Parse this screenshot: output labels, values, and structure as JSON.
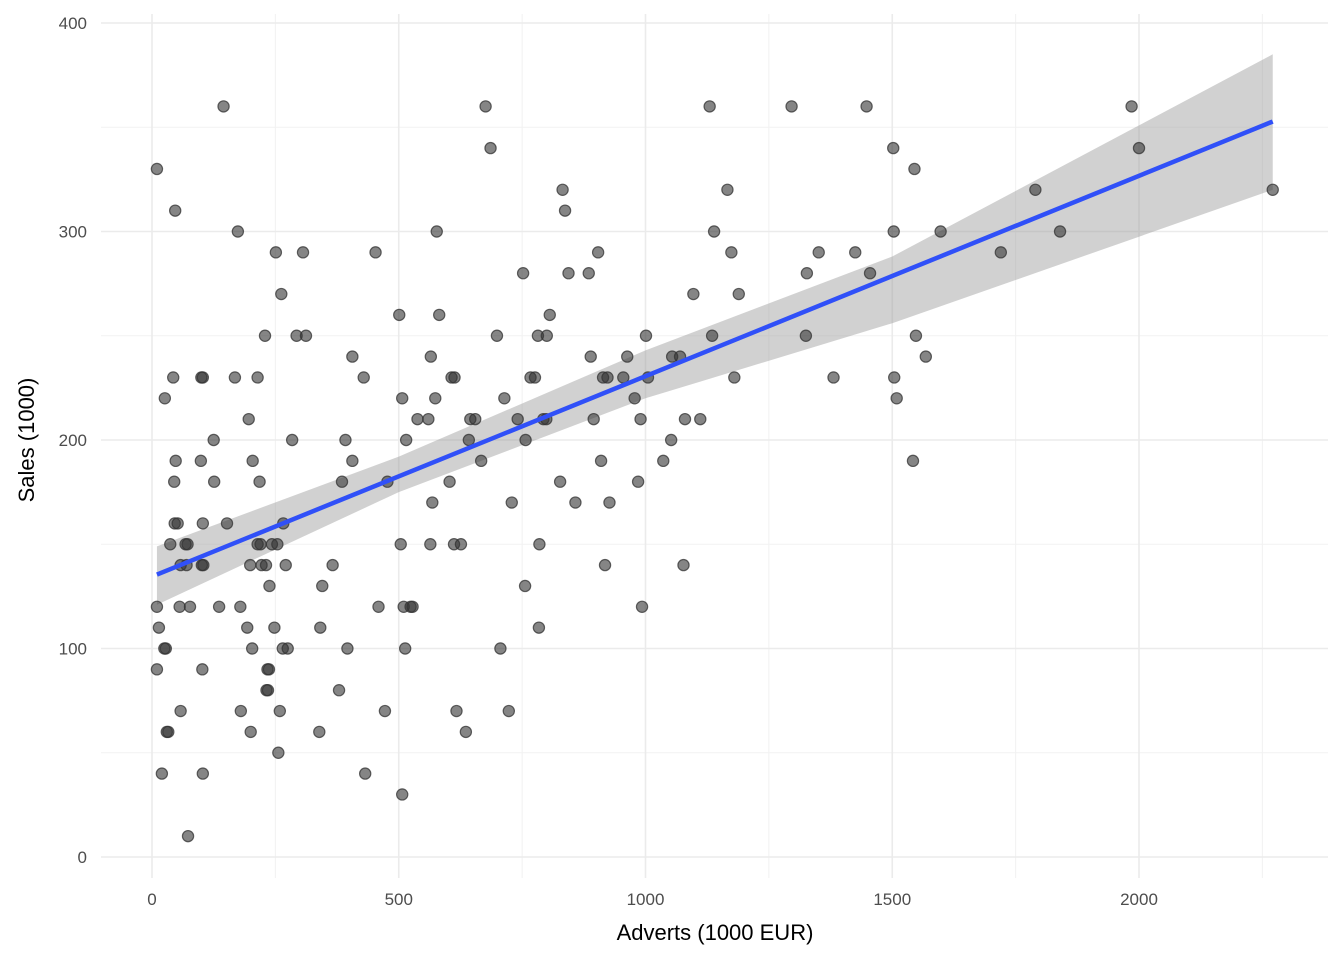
{
  "chart_data": {
    "type": "scatter",
    "title": "",
    "xlabel": "Adverts (1000 EUR)",
    "ylabel": "Sales (1000)",
    "xlim": [
      -100,
      2360
    ],
    "ylim": [
      -10,
      415
    ],
    "x_ticks": [
      0,
      500,
      1000,
      1500,
      2000
    ],
    "y_ticks": [
      0,
      100,
      200,
      300,
      400
    ],
    "x_tick_labels": [
      "0",
      "500",
      "1000",
      "1500",
      "2000"
    ],
    "y_tick_labels": [
      "0",
      "100",
      "200",
      "300",
      "400"
    ],
    "grid": true,
    "legend": "none",
    "colors": {
      "points": "#333333",
      "point_alpha": 0.6,
      "fit_line": "#3050f8",
      "ci_band": "#999999",
      "ci_alpha": 0.45,
      "grid_major": "#ebebeb",
      "grid_minor": "#f2f2f2",
      "tick_text": "#4d4d4d",
      "axis_title": "#000000"
    },
    "fit": {
      "method": "lm",
      "x_range": [
        10,
        2271
      ],
      "intercept": 134.5,
      "slope": 0.0961,
      "ci": {
        "x": [
          10,
          500,
          1000,
          1500,
          2271
        ],
        "lower": [
          121,
          175,
          220,
          256,
          320
        ],
        "upper": [
          149,
          192,
          243,
          288,
          385
        ]
      }
    },
    "points": [
      [
        10,
        330
      ],
      [
        145,
        360
      ],
      [
        47,
        310
      ],
      [
        174,
        300
      ],
      [
        26,
        220
      ],
      [
        10,
        120
      ],
      [
        14,
        110
      ],
      [
        25,
        100
      ],
      [
        28,
        100
      ],
      [
        10,
        90
      ],
      [
        43,
        230
      ],
      [
        100,
        230
      ],
      [
        103,
        230
      ],
      [
        168,
        230
      ],
      [
        214,
        230
      ],
      [
        48,
        190
      ],
      [
        99,
        190
      ],
      [
        204,
        190
      ],
      [
        37,
        150
      ],
      [
        45,
        180
      ],
      [
        46,
        160
      ],
      [
        52,
        160
      ],
      [
        103,
        160
      ],
      [
        152,
        160
      ],
      [
        266,
        160
      ],
      [
        58,
        140
      ],
      [
        70,
        140
      ],
      [
        101,
        140
      ],
      [
        104,
        140
      ],
      [
        199,
        140
      ],
      [
        222,
        140
      ],
      [
        231,
        140
      ],
      [
        271,
        140
      ],
      [
        68,
        150
      ],
      [
        72,
        150
      ],
      [
        214,
        150
      ],
      [
        220,
        150
      ],
      [
        243,
        150
      ],
      [
        254,
        150
      ],
      [
        56,
        120
      ],
      [
        77,
        120
      ],
      [
        136,
        120
      ],
      [
        179,
        120
      ],
      [
        125,
        200
      ],
      [
        284,
        200
      ],
      [
        126,
        180
      ],
      [
        218,
        180
      ],
      [
        196,
        210
      ],
      [
        229,
        250
      ],
      [
        262,
        270
      ],
      [
        293,
        250
      ],
      [
        312,
        250
      ],
      [
        251,
        290
      ],
      [
        306,
        290
      ],
      [
        30,
        60
      ],
      [
        33,
        60
      ],
      [
        20,
        40
      ],
      [
        58,
        70
      ],
      [
        73,
        10
      ],
      [
        102,
        90
      ],
      [
        103,
        40
      ],
      [
        200,
        60
      ],
      [
        180,
        70
      ],
      [
        203,
        100
      ],
      [
        193,
        110
      ],
      [
        238,
        130
      ],
      [
        248,
        110
      ],
      [
        265,
        100
      ],
      [
        275,
        100
      ],
      [
        234,
        90
      ],
      [
        237,
        90
      ],
      [
        232,
        80
      ],
      [
        235,
        80
      ],
      [
        259,
        70
      ],
      [
        256,
        50
      ],
      [
        339,
        60
      ],
      [
        341,
        110
      ],
      [
        345,
        130
      ],
      [
        366,
        140
      ],
      [
        379,
        80
      ],
      [
        385,
        180
      ],
      [
        392,
        200
      ],
      [
        396,
        100
      ],
      [
        406,
        190
      ],
      [
        406,
        240
      ],
      [
        429,
        230
      ],
      [
        432,
        40
      ],
      [
        453,
        290
      ],
      [
        459,
        120
      ],
      [
        472,
        70
      ],
      [
        477,
        180
      ],
      [
        501,
        260
      ],
      [
        504,
        150
      ],
      [
        507,
        220
      ],
      [
        510,
        120
      ],
      [
        513,
        100
      ],
      [
        515,
        200
      ],
      [
        524,
        120
      ],
      [
        528,
        120
      ],
      [
        507,
        30
      ],
      [
        538,
        210
      ],
      [
        560,
        210
      ],
      [
        564,
        150
      ],
      [
        565,
        240
      ],
      [
        568,
        170
      ],
      [
        574,
        220
      ],
      [
        577,
        300
      ],
      [
        582,
        260
      ],
      [
        603,
        180
      ],
      [
        607,
        230
      ],
      [
        613,
        230
      ],
      [
        612,
        150
      ],
      [
        617,
        70
      ],
      [
        626,
        150
      ],
      [
        636,
        60
      ],
      [
        642,
        200
      ],
      [
        645,
        210
      ],
      [
        655,
        210
      ],
      [
        667,
        190
      ],
      [
        676,
        360
      ],
      [
        686,
        340
      ],
      [
        699,
        250
      ],
      [
        706,
        100
      ],
      [
        714,
        220
      ],
      [
        723,
        70
      ],
      [
        729,
        170
      ],
      [
        741,
        210
      ],
      [
        752,
        280
      ],
      [
        756,
        130
      ],
      [
        757,
        200
      ],
      [
        767,
        230
      ],
      [
        776,
        230
      ],
      [
        782,
        250
      ],
      [
        784,
        110
      ],
      [
        785,
        150
      ],
      [
        793,
        210
      ],
      [
        799,
        210
      ],
      [
        800,
        250
      ],
      [
        806,
        260
      ],
      [
        827,
        180
      ],
      [
        832,
        320
      ],
      [
        837,
        310
      ],
      [
        844,
        280
      ],
      [
        858,
        170
      ],
      [
        885,
        280
      ],
      [
        889,
        240
      ],
      [
        895,
        210
      ],
      [
        904,
        290
      ],
      [
        910,
        190
      ],
      [
        914,
        230
      ],
      [
        918,
        140
      ],
      [
        923,
        230
      ],
      [
        927,
        170
      ],
      [
        955,
        230
      ],
      [
        963,
        240
      ],
      [
        978,
        220
      ],
      [
        985,
        180
      ],
      [
        990,
        210
      ],
      [
        993,
        120
      ],
      [
        1001,
        250
      ],
      [
        1005,
        230
      ],
      [
        1036,
        190
      ],
      [
        1052,
        200
      ],
      [
        1054,
        240
      ],
      [
        1070,
        240
      ],
      [
        1077,
        140
      ],
      [
        1080,
        210
      ],
      [
        1097,
        270
      ],
      [
        1111,
        210
      ],
      [
        1130,
        360
      ],
      [
        1135,
        250
      ],
      [
        1139,
        300
      ],
      [
        1166,
        320
      ],
      [
        1174,
        290
      ],
      [
        1180,
        230
      ],
      [
        1189,
        270
      ],
      [
        1296,
        360
      ],
      [
        1325,
        250
      ],
      [
        1327,
        280
      ],
      [
        1351,
        290
      ],
      [
        1381,
        230
      ],
      [
        1425,
        290
      ],
      [
        1448,
        360
      ],
      [
        1455,
        280
      ],
      [
        1502,
        340
      ],
      [
        1503,
        300
      ],
      [
        1504,
        230
      ],
      [
        1509,
        220
      ],
      [
        1542,
        190
      ],
      [
        1545,
        330
      ],
      [
        1548,
        250
      ],
      [
        1568,
        240
      ],
      [
        1598,
        300
      ],
      [
        1720,
        290
      ],
      [
        1790,
        320
      ],
      [
        1840,
        300
      ],
      [
        1985,
        360
      ],
      [
        2000,
        340
      ],
      [
        2271,
        320
      ]
    ]
  }
}
